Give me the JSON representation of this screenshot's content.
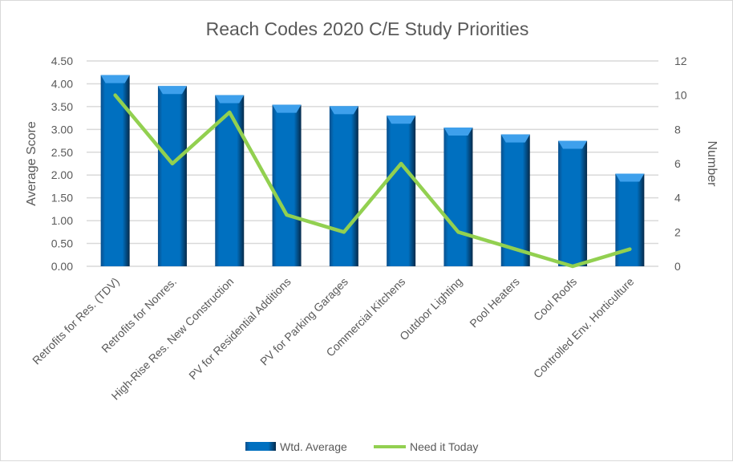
{
  "chart_data": {
    "type": "bar+line",
    "title": "Reach Codes 2020 C/E Study Priorities",
    "categories": [
      "Retrofits for Res. (TDV)",
      "Retrofits for Nonres.",
      "High-Rise Res. New Construction",
      "PV for Residential Additions",
      "PV for Parking Garages",
      "Commercial Kitchens",
      "Outdoor Lighting",
      "Pool Heaters",
      "Cool Roofs",
      "Controlled Env. Horticulture"
    ],
    "series": [
      {
        "name": "Wtd. Average",
        "type": "bar",
        "axis": "left",
        "color": "#0070C0",
        "values": [
          4.19,
          3.95,
          3.75,
          3.54,
          3.51,
          3.3,
          3.04,
          2.89,
          2.75,
          2.03
        ]
      },
      {
        "name": "Need it Today",
        "type": "line",
        "axis": "right",
        "color": "#92D050",
        "values": [
          10,
          6,
          9,
          3,
          2,
          6,
          2,
          1,
          0,
          1
        ]
      }
    ],
    "ylabel": "Average Score",
    "y2label": "Number",
    "ylim": [
      0,
      4.5
    ],
    "y2lim": [
      0,
      12
    ],
    "yticks": [
      "0.00",
      "0.50",
      "1.00",
      "1.50",
      "2.00",
      "2.50",
      "3.00",
      "3.50",
      "4.00",
      "4.50"
    ],
    "y2ticks": [
      "0",
      "2",
      "4",
      "6",
      "8",
      "10",
      "12"
    ],
    "grid": true,
    "legend": "bottom"
  }
}
